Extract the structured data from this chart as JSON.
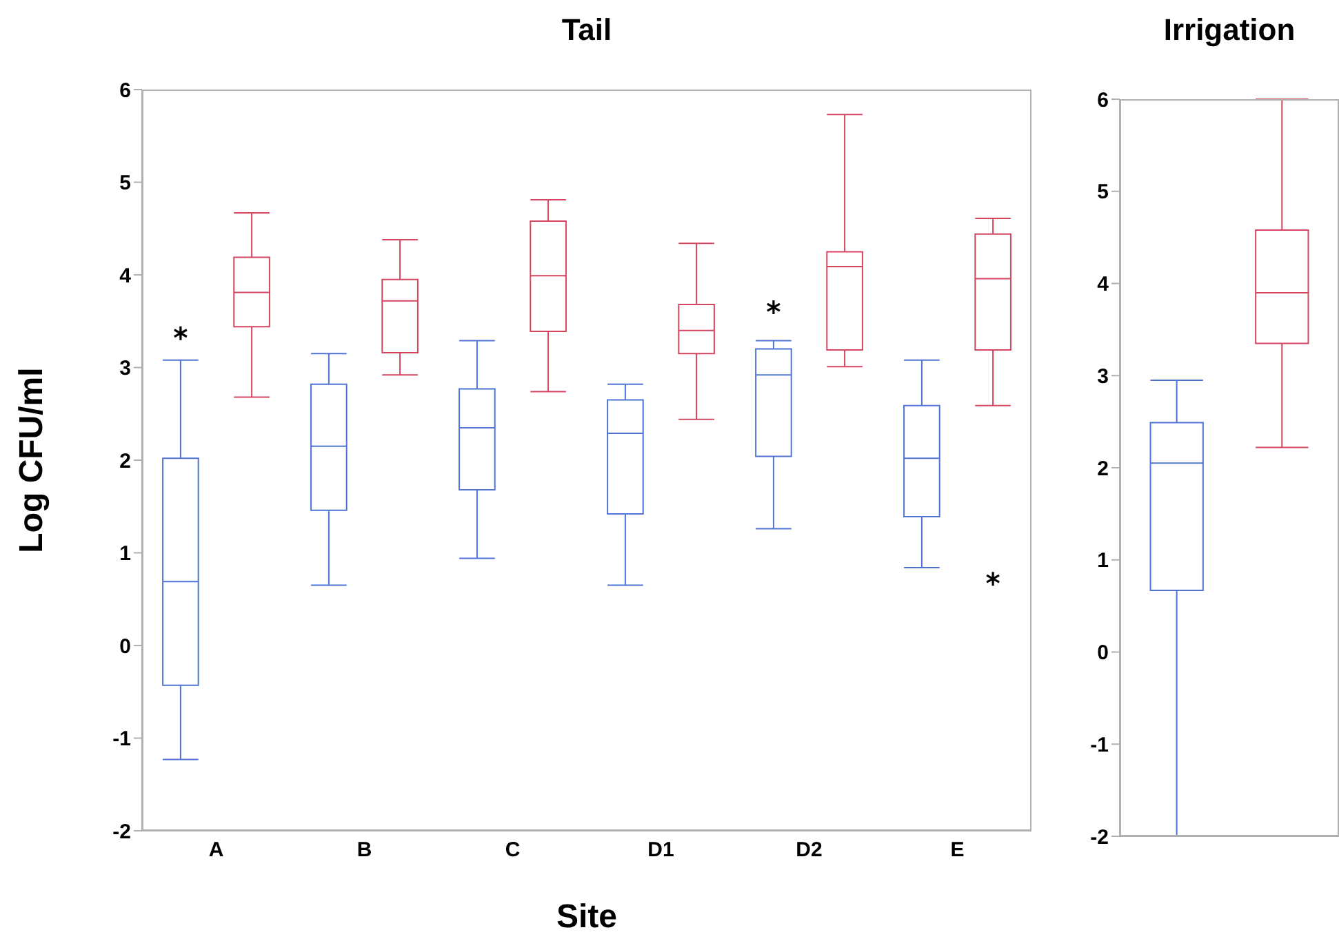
{
  "chart_data": [
    {
      "type": "box",
      "title": "Tail",
      "xlabel": "Site",
      "ylabel": "Log CFU/ml",
      "categories": [
        "A",
        "B",
        "C",
        "D1",
        "D2",
        "E"
      ],
      "ylim": [
        -2,
        6
      ],
      "yticks": [
        -2,
        -1,
        0,
        1,
        2,
        3,
        4,
        5,
        6
      ],
      "series": [
        {
          "color": "#4f74d6",
          "boxes": [
            {
              "low": -1.23,
              "q1": -0.43,
              "median": 0.69,
              "q3": 2.02,
              "high": 3.08,
              "outliers": [
                3.37
              ]
            },
            {
              "low": 0.65,
              "q1": 1.46,
              "median": 2.15,
              "q3": 2.82,
              "high": 3.15
            },
            {
              "low": 0.94,
              "q1": 1.68,
              "median": 2.35,
              "q3": 2.77,
              "high": 3.29
            },
            {
              "low": 0.65,
              "q1": 1.42,
              "median": 2.29,
              "q3": 2.65,
              "high": 2.82
            },
            {
              "low": 1.26,
              "q1": 2.04,
              "median": 2.92,
              "q3": 3.2,
              "high": 3.29,
              "outliers": [
                3.65
              ]
            },
            {
              "low": 0.84,
              "q1": 1.39,
              "median": 2.02,
              "q3": 2.59,
              "high": 3.08
            }
          ]
        },
        {
          "color": "#d6455f",
          "boxes": [
            {
              "low": 2.68,
              "q1": 3.44,
              "median": 3.81,
              "q3": 4.19,
              "high": 4.67
            },
            {
              "low": 2.92,
              "q1": 3.16,
              "median": 3.72,
              "q3": 3.95,
              "high": 4.38
            },
            {
              "low": 2.74,
              "q1": 3.39,
              "median": 3.99,
              "q3": 4.58,
              "high": 4.81
            },
            {
              "low": 2.44,
              "q1": 3.15,
              "median": 3.4,
              "q3": 3.68,
              "high": 4.34
            },
            {
              "low": 3.01,
              "q1": 3.19,
              "median": 4.09,
              "q3": 4.25,
              "high": 5.73
            },
            {
              "low": 2.59,
              "q1": 3.19,
              "median": 3.96,
              "q3": 4.44,
              "high": 4.61,
              "outliers": [
                0.72
              ]
            }
          ]
        }
      ]
    },
    {
      "type": "box",
      "title": "Irrigation",
      "categories": [
        null
      ],
      "ylim": [
        -2,
        6
      ],
      "yticks": [
        -2,
        -1,
        0,
        1,
        2,
        3,
        4,
        5,
        6
      ],
      "series": [
        {
          "color": "#4f74d6",
          "boxes": [
            {
              "low": -2,
              "q1": 0.67,
              "median": 2.05,
              "q3": 2.49,
              "high": 2.95
            }
          ]
        },
        {
          "color": "#d6455f",
          "boxes": [
            {
              "low": 2.22,
              "q1": 3.35,
              "median": 3.9,
              "q3": 4.58,
              "high": 6
            }
          ]
        }
      ]
    }
  ]
}
